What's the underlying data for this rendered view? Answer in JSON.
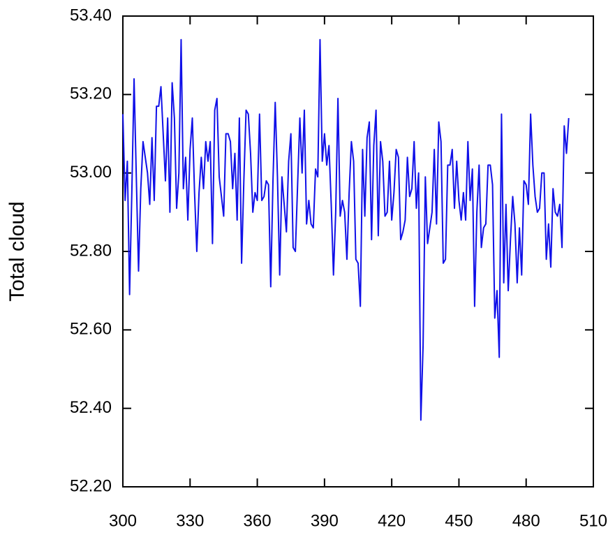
{
  "chart_data": {
    "type": "line",
    "ylabel": "Total cloud",
    "color": "#1010e8",
    "xlim": [
      300,
      510
    ],
    "xticks": [
      300,
      330,
      360,
      390,
      420,
      450,
      480,
      510
    ],
    "ylim": [
      52.2,
      53.4
    ],
    "yticks": [
      {
        "value": 52.2,
        "label": "52.20"
      },
      {
        "value": 52.4,
        "label": "52.40"
      },
      {
        "value": 52.6,
        "label": "52.60"
      },
      {
        "value": 52.8,
        "label": "52.80"
      },
      {
        "value": 53.0,
        "label": "53.00"
      },
      {
        "value": 53.2,
        "label": "53.20"
      },
      {
        "value": 53.4,
        "label": "53.40"
      }
    ],
    "x": [
      300,
      301,
      302,
      303,
      304,
      305,
      306,
      307,
      308,
      309,
      310,
      311,
      312,
      313,
      314,
      315,
      316,
      317,
      318,
      319,
      320,
      321,
      322,
      323,
      324,
      325,
      326,
      327,
      328,
      329,
      330,
      331,
      332,
      333,
      334,
      335,
      336,
      337,
      338,
      339,
      340,
      341,
      342,
      343,
      344,
      345,
      346,
      347,
      348,
      349,
      350,
      351,
      352,
      353,
      354,
      355,
      356,
      357,
      358,
      359,
      360,
      361,
      362,
      363,
      364,
      365,
      366,
      367,
      368,
      369,
      370,
      371,
      372,
      373,
      374,
      375,
      376,
      377,
      378,
      379,
      380,
      381,
      382,
      383,
      384,
      385,
      386,
      387,
      388,
      389,
      390,
      391,
      392,
      393,
      394,
      395,
      396,
      397,
      398,
      399,
      400,
      401,
      402,
      403,
      404,
      405,
      406,
      407,
      408,
      409,
      410,
      411,
      412,
      413,
      414,
      415,
      416,
      417,
      418,
      419,
      420,
      421,
      422,
      423,
      424,
      425,
      426,
      427,
      428,
      429,
      430,
      431,
      432,
      433,
      434,
      435,
      436,
      437,
      438,
      439,
      440,
      441,
      442,
      443,
      444,
      445,
      446,
      447,
      448,
      449,
      450,
      451,
      452,
      453,
      454,
      455,
      456,
      457,
      458,
      459,
      460,
      461,
      462,
      463,
      464,
      465,
      466,
      467,
      468,
      469,
      470,
      471,
      472,
      473,
      474,
      475,
      476,
      477,
      478,
      479,
      480,
      481,
      482,
      483,
      484,
      485,
      486,
      487,
      488,
      489,
      490,
      491,
      492,
      493,
      494,
      495,
      496,
      497,
      498,
      499
    ],
    "values": [
      53.15,
      52.93,
      53.03,
      52.69,
      52.95,
      53.24,
      52.99,
      52.75,
      52.96,
      53.08,
      53.04,
      53.0,
      52.92,
      53.09,
      52.93,
      53.17,
      53.17,
      53.22,
      53.1,
      52.98,
      53.14,
      52.9,
      53.23,
      53.14,
      52.91,
      53.0,
      53.34,
      52.96,
      53.04,
      52.88,
      53.06,
      53.14,
      52.95,
      52.8,
      52.95,
      53.04,
      52.96,
      53.08,
      53.03,
      53.08,
      52.82,
      53.16,
      53.19,
      52.99,
      52.94,
      52.89,
      53.1,
      53.1,
      53.08,
      52.96,
      53.05,
      52.88,
      53.14,
      52.77,
      52.98,
      53.16,
      53.15,
      53.05,
      52.9,
      52.95,
      52.93,
      53.15,
      52.93,
      52.94,
      52.98,
      52.97,
      52.71,
      52.98,
      53.18,
      52.99,
      52.74,
      52.99,
      52.92,
      52.85,
      53.03,
      53.1,
      52.81,
      52.8,
      52.97,
      53.14,
      53.0,
      53.16,
      52.87,
      52.93,
      52.87,
      52.86,
      53.01,
      52.99,
      53.34,
      53.03,
      53.1,
      53.02,
      53.07,
      52.92,
      52.74,
      52.9,
      53.19,
      52.89,
      52.93,
      52.9,
      52.78,
      52.95,
      53.08,
      53.03,
      52.78,
      52.77,
      52.66,
      53.06,
      52.89,
      53.09,
      53.13,
      52.83,
      53.07,
      53.16,
      52.84,
      53.08,
      53.03,
      52.89,
      52.9,
      53.03,
      52.88,
      52.95,
      53.06,
      53.04,
      52.83,
      52.85,
      52.88,
      53.04,
      52.94,
      52.96,
      53.08,
      52.91,
      53.0,
      52.37,
      52.56,
      52.99,
      52.82,
      52.86,
      52.9,
      53.06,
      52.87,
      53.13,
      53.08,
      52.77,
      52.78,
      53.02,
      53.02,
      53.06,
      52.91,
      53.03,
      52.93,
      52.88,
      52.95,
      52.88,
      53.08,
      52.93,
      53.01,
      52.66,
      52.9,
      53.02,
      52.81,
      52.86,
      52.87,
      53.02,
      53.02,
      52.97,
      52.63,
      52.7,
      52.53,
      53.15,
      52.72,
      52.92,
      52.7,
      52.83,
      52.94,
      52.87,
      52.72,
      52.86,
      52.74,
      52.98,
      52.97,
      52.92,
      53.15,
      53.02,
      52.94,
      52.9,
      52.91,
      53.0,
      53.0,
      52.78,
      52.87,
      52.76,
      52.96,
      52.9,
      52.89,
      52.92,
      52.81,
      53.12,
      53.05,
      53.14
    ]
  }
}
